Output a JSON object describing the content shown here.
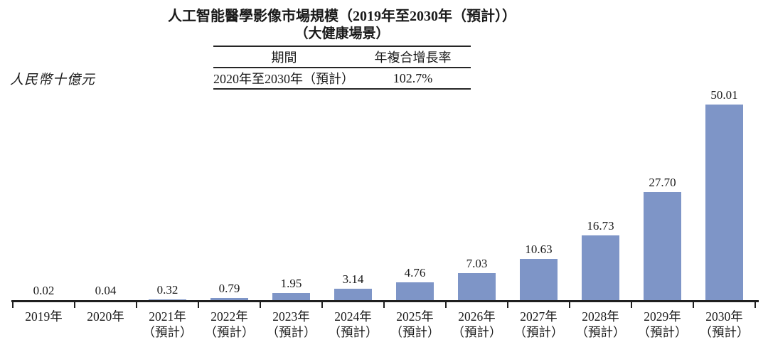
{
  "header": {
    "title": "人工智能醫學影像市場規模（2019年至2030年（預計））",
    "subtitle": "（大健康場景）"
  },
  "cagr_table": {
    "col_headers": [
      "期間",
      "年複合增長率"
    ],
    "rows": [
      {
        "period": "2020年至2030年（預計）",
        "cagr": "102.7%"
      }
    ]
  },
  "chart_data": {
    "type": "bar",
    "title": "人工智能醫學影像市場規模（2019年至2030年（預計））",
    "subtitle": "（大健康場景）",
    "unit_label": "人民幣十億元",
    "categories": [
      "2019年",
      "2020年",
      "2021年\n（預計）",
      "2022年\n（預計）",
      "2023年\n（預計）",
      "2024年\n（預計）",
      "2025年\n（預計）",
      "2026年\n（預計）",
      "2027年\n（預計）",
      "2028年\n（預計）",
      "2029年\n（預計）",
      "2030年\n（預計）"
    ],
    "values": [
      0.02,
      0.04,
      0.32,
      0.79,
      1.95,
      3.14,
      4.76,
      7.03,
      10.63,
      16.73,
      27.7,
      50.01
    ],
    "value_labels": [
      "0.02",
      "0.04",
      "0.32",
      "0.79",
      "1.95",
      "3.14",
      "4.76",
      "7.03",
      "10.63",
      "16.73",
      "27.70",
      "50.01"
    ],
    "ylim": [
      0,
      50.01
    ],
    "grid": false,
    "legend": false,
    "bar_color": "#7e95c7",
    "axis_color": "#1f1f1f",
    "text_color": "#1a1a1a"
  }
}
